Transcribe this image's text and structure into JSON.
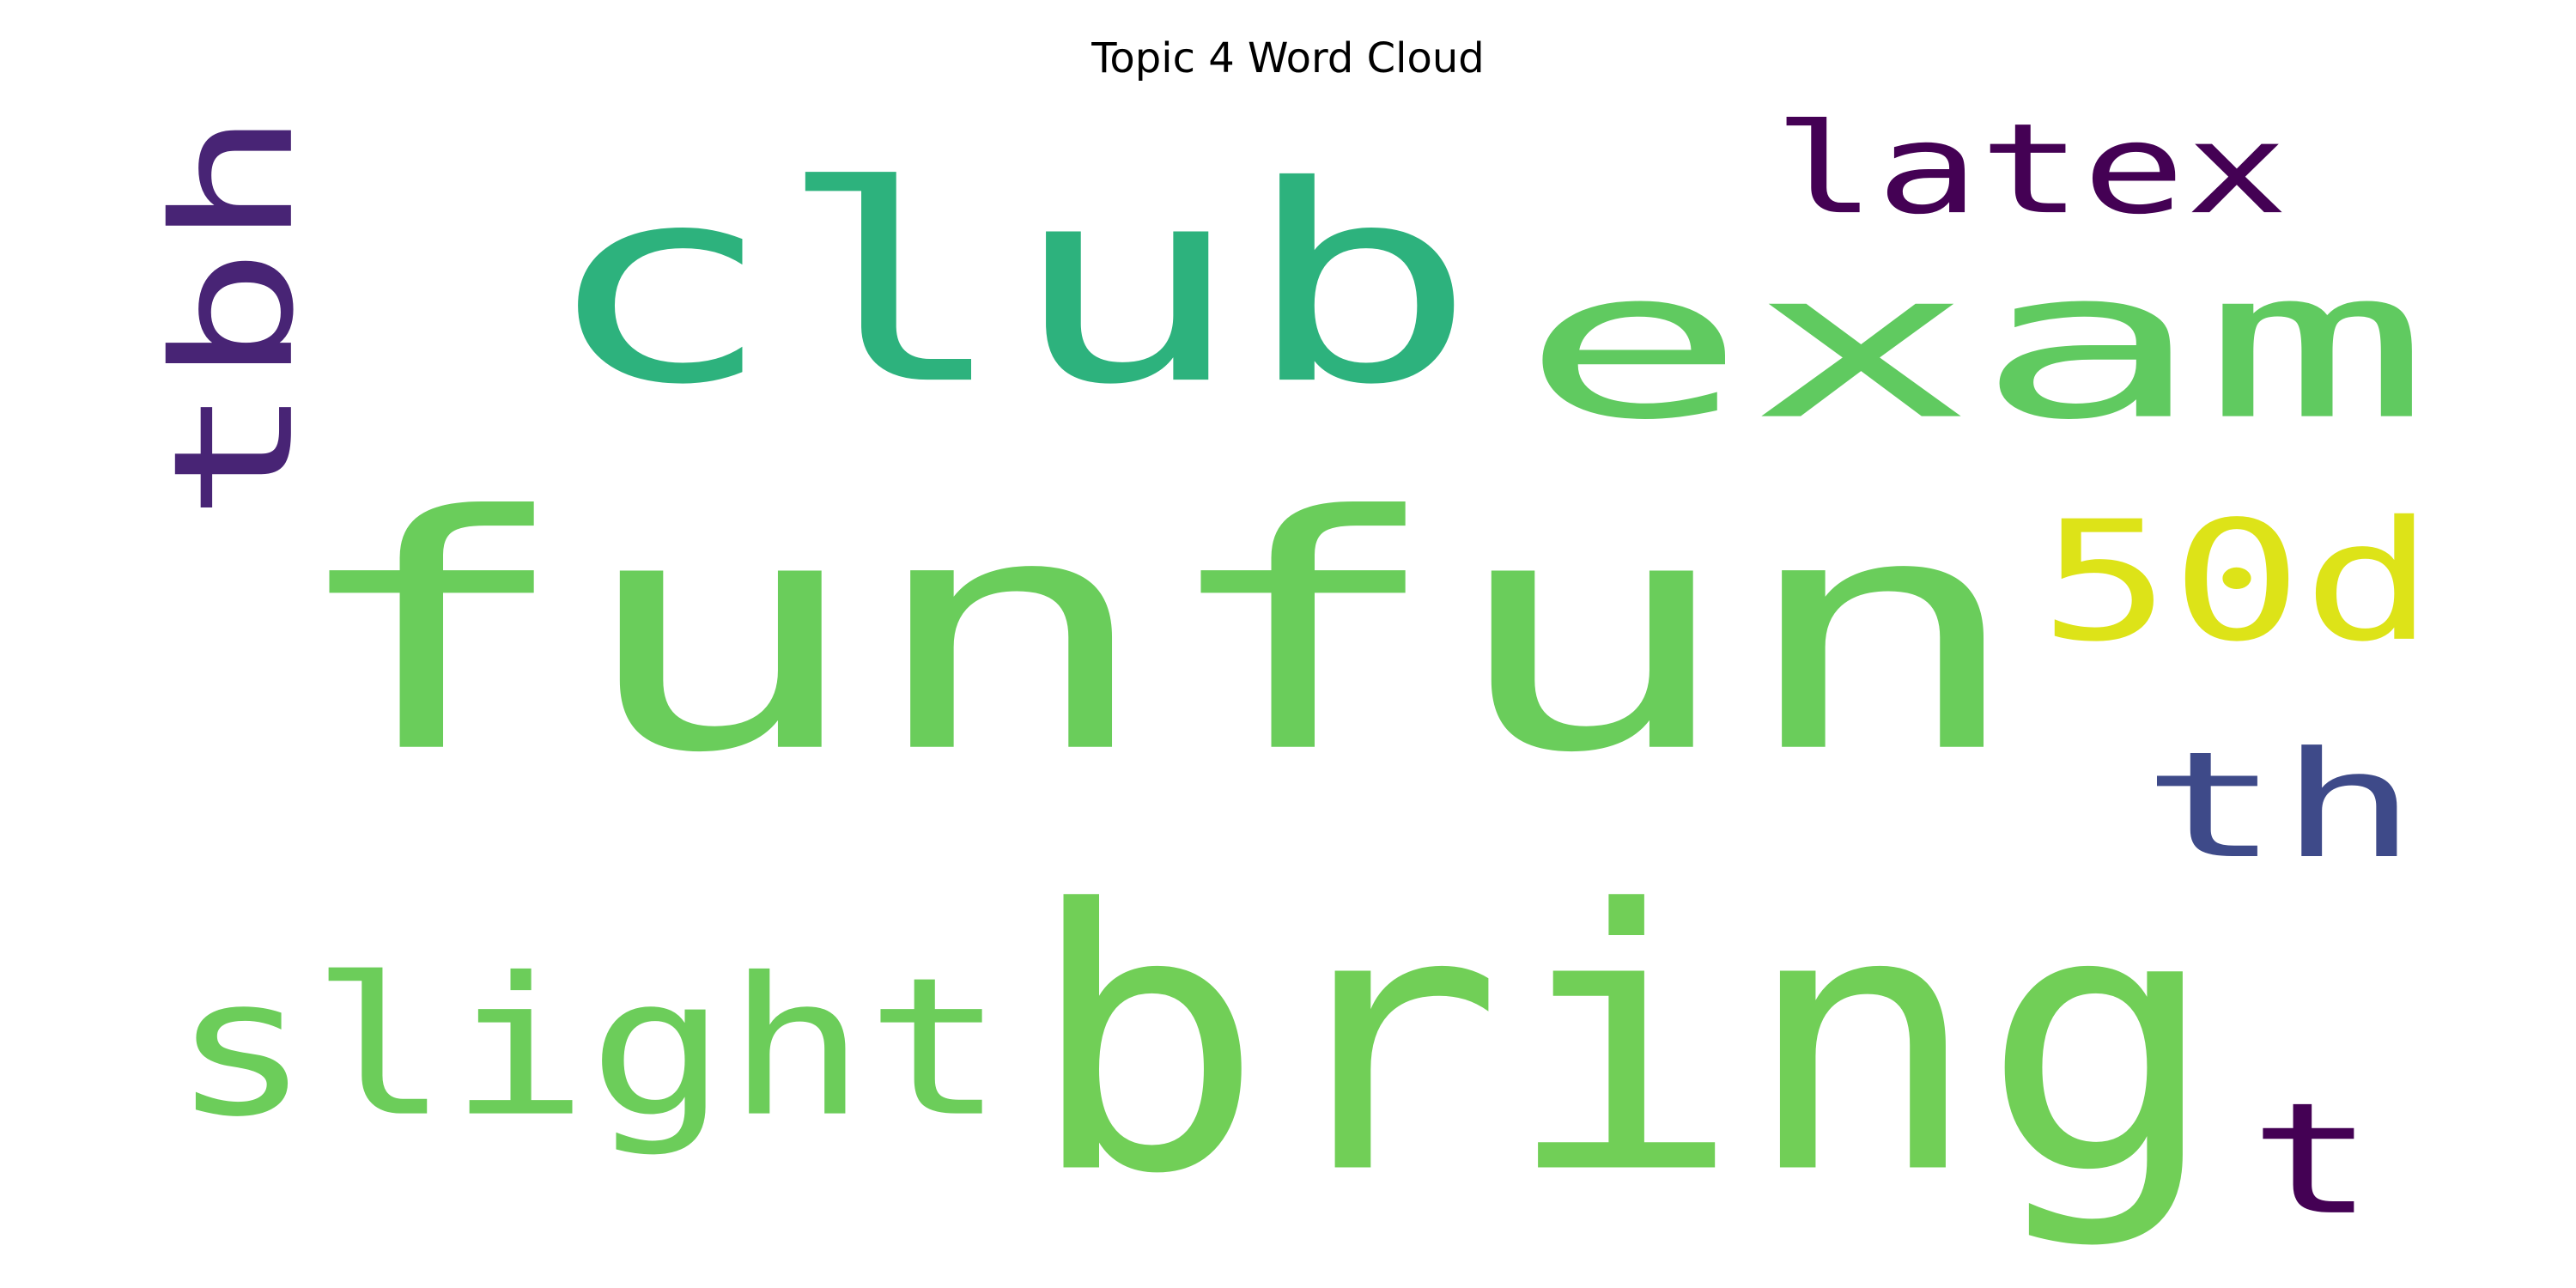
{
  "title": "Topic 4 Word Cloud",
  "words": [
    {
      "text": "funfun",
      "color": "#6acd5b",
      "rotated": false
    },
    {
      "text": "club",
      "color": "#2db27d",
      "rotated": false
    },
    {
      "text": "exam",
      "color": "#60ca60",
      "rotated": false
    },
    {
      "text": "bring",
      "color": "#71cf57",
      "rotated": false
    },
    {
      "text": "slight",
      "color": "#6ccd5a",
      "rotated": false
    },
    {
      "text": "latex",
      "color": "#440154",
      "rotated": false
    },
    {
      "text": "tbh",
      "color": "#482475",
      "rotated": true
    },
    {
      "text": "50d",
      "color": "#dde318",
      "rotated": false
    },
    {
      "text": "th",
      "color": "#3e4a89",
      "rotated": false
    },
    {
      "text": "t",
      "color": "#440154",
      "rotated": false
    }
  ]
}
